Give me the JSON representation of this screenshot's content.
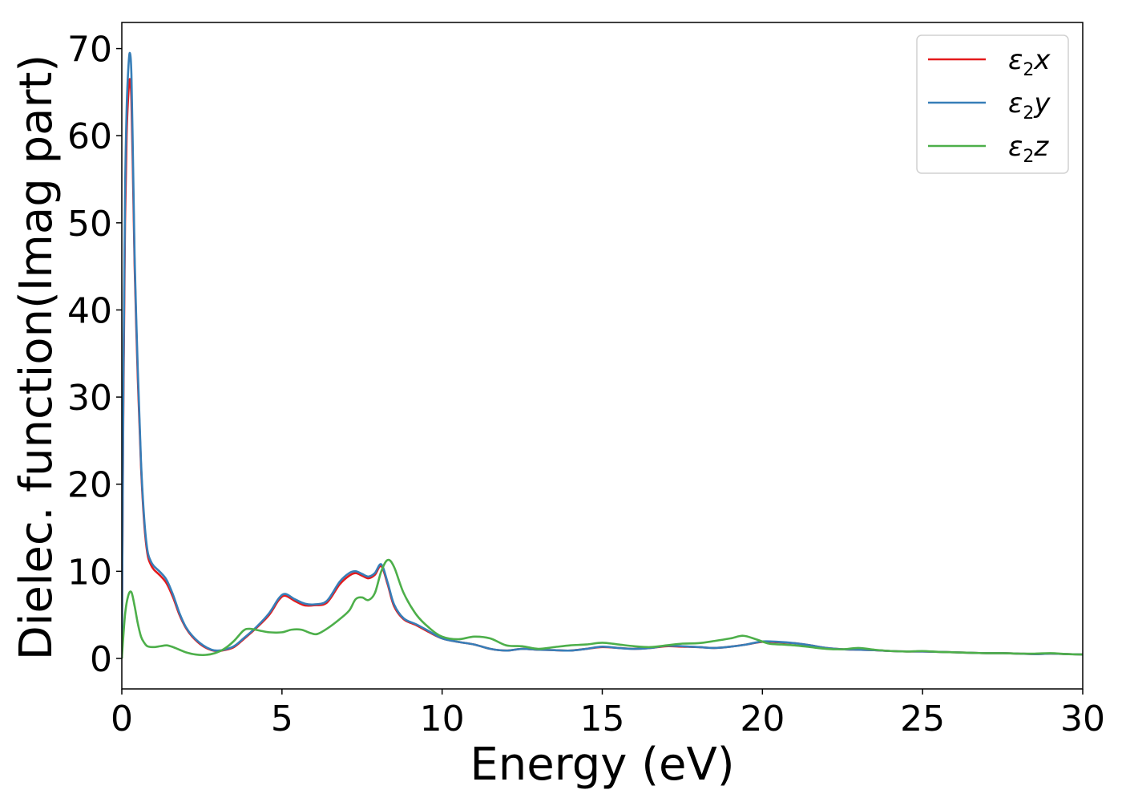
{
  "chart_data": {
    "type": "line",
    "xlabel": "Energy (eV)",
    "ylabel": "Dielec. function(Imag part)",
    "xlim": [
      0,
      30
    ],
    "ylim": [
      -3.5,
      73
    ],
    "xticks": [
      0,
      5,
      10,
      15,
      20,
      25,
      30
    ],
    "yticks": [
      0,
      10,
      20,
      30,
      40,
      50,
      60,
      70
    ],
    "grid": false,
    "legend": "top-right",
    "series": [
      {
        "legend_sym": "ε",
        "legend_sub": "2",
        "legend_var": "x",
        "color": "#e41a1c",
        "x": [
          0,
          0.05,
          0.1,
          0.15,
          0.2,
          0.25,
          0.3,
          0.35,
          0.4,
          0.5,
          0.6,
          0.7,
          0.8,
          0.9,
          1.0,
          1.2,
          1.4,
          1.6,
          1.8,
          2.0,
          2.2,
          2.5,
          2.8,
          3.0,
          3.2,
          3.5,
          3.8,
          4.2,
          4.6,
          4.9,
          5.1,
          5.4,
          5.7,
          6.0,
          6.4,
          6.8,
          7.1,
          7.3,
          7.5,
          7.7,
          7.9,
          8.1,
          8.3,
          8.5,
          8.8,
          9.2,
          9.6,
          10.0,
          10.5,
          11.0,
          11.5,
          12.0,
          12.5,
          13.0,
          13.5,
          14.0,
          14.5,
          15.0,
          15.5,
          16.0,
          16.5,
          17.0,
          17.5,
          18.0,
          18.5,
          19.0,
          19.5,
          20.0,
          20.5,
          21.0,
          21.5,
          22.0,
          22.5,
          23.0,
          23.5,
          24.0,
          24.5,
          25.0,
          25.5,
          26.0,
          26.5,
          27.0,
          27.5,
          28.0,
          28.5,
          29.0,
          29.5,
          30.0
        ],
        "y": [
          0,
          30,
          50,
          60,
          64.5,
          66.5,
          64,
          55,
          45,
          32,
          22,
          15.5,
          12,
          10.8,
          10.2,
          9.5,
          8.6,
          7.0,
          5.0,
          3.5,
          2.5,
          1.5,
          0.95,
          0.85,
          0.95,
          1.3,
          2.2,
          3.5,
          5.0,
          6.7,
          7.2,
          6.6,
          6.1,
          6.1,
          6.4,
          8.5,
          9.5,
          9.8,
          9.5,
          9.2,
          9.6,
          10.6,
          8.5,
          6.0,
          4.5,
          3.8,
          3.0,
          2.3,
          1.9,
          1.6,
          1.1,
          0.9,
          1.1,
          1.0,
          0.95,
          0.9,
          1.1,
          1.3,
          1.2,
          1.1,
          1.2,
          1.4,
          1.35,
          1.3,
          1.2,
          1.35,
          1.6,
          1.9,
          1.85,
          1.75,
          1.5,
          1.2,
          1.05,
          1.0,
          0.95,
          0.85,
          0.8,
          0.8,
          0.75,
          0.7,
          0.65,
          0.6,
          0.6,
          0.55,
          0.5,
          0.55,
          0.5,
          0.45
        ]
      },
      {
        "legend_sym": "ε",
        "legend_sub": "2",
        "legend_var": "y",
        "color": "#377eb8",
        "x": [
          0,
          0.05,
          0.1,
          0.15,
          0.2,
          0.25,
          0.3,
          0.35,
          0.4,
          0.5,
          0.6,
          0.7,
          0.8,
          0.9,
          1.0,
          1.2,
          1.4,
          1.6,
          1.8,
          2.0,
          2.2,
          2.5,
          2.8,
          3.0,
          3.2,
          3.5,
          3.8,
          4.2,
          4.6,
          4.9,
          5.1,
          5.4,
          5.7,
          6.0,
          6.4,
          6.8,
          7.1,
          7.3,
          7.5,
          7.7,
          7.9,
          8.1,
          8.3,
          8.5,
          8.8,
          9.2,
          9.6,
          10.0,
          10.5,
          11.0,
          11.5,
          12.0,
          12.5,
          13.0,
          13.5,
          14.0,
          14.5,
          15.0,
          15.5,
          16.0,
          16.5,
          17.0,
          17.5,
          18.0,
          18.5,
          19.0,
          19.5,
          20.0,
          20.5,
          21.0,
          21.5,
          22.0,
          22.5,
          23.0,
          23.5,
          24.0,
          24.5,
          25.0,
          25.5,
          26.0,
          26.5,
          27.0,
          27.5,
          28.0,
          28.5,
          29.0,
          29.5,
          30.0
        ],
        "y": [
          0,
          32,
          53,
          63,
          67.5,
          69.5,
          67,
          57,
          46,
          33,
          22.5,
          16,
          12.4,
          11.2,
          10.6,
          9.9,
          9.0,
          7.3,
          5.2,
          3.6,
          2.6,
          1.6,
          1.0,
          0.9,
          1.0,
          1.4,
          2.3,
          3.6,
          5.2,
          6.9,
          7.4,
          6.8,
          6.3,
          6.2,
          6.6,
          8.8,
          9.8,
          10.0,
          9.7,
          9.4,
          9.8,
          10.8,
          8.7,
          6.2,
          4.6,
          3.9,
          3.1,
          2.3,
          1.9,
          1.6,
          1.1,
          0.9,
          1.1,
          1.0,
          0.95,
          0.9,
          1.1,
          1.35,
          1.2,
          1.1,
          1.2,
          1.45,
          1.4,
          1.3,
          1.2,
          1.35,
          1.6,
          1.95,
          1.9,
          1.75,
          1.5,
          1.2,
          1.05,
          1.0,
          0.95,
          0.85,
          0.8,
          0.8,
          0.75,
          0.7,
          0.65,
          0.6,
          0.6,
          0.55,
          0.5,
          0.55,
          0.5,
          0.45
        ]
      },
      {
        "legend_sym": "ε",
        "legend_sub": "2",
        "legend_var": "z",
        "color": "#4daf4a",
        "x": [
          0,
          0.1,
          0.2,
          0.3,
          0.4,
          0.5,
          0.6,
          0.7,
          0.8,
          1.0,
          1.2,
          1.4,
          1.6,
          1.8,
          2.0,
          2.3,
          2.6,
          2.9,
          3.2,
          3.5,
          3.8,
          4.0,
          4.3,
          4.6,
          5.0,
          5.3,
          5.6,
          5.9,
          6.1,
          6.4,
          6.8,
          7.1,
          7.3,
          7.5,
          7.7,
          7.9,
          8.1,
          8.3,
          8.5,
          8.8,
          9.2,
          9.6,
          10.0,
          10.5,
          11.0,
          11.5,
          12.0,
          12.5,
          13.0,
          13.5,
          14.0,
          14.5,
          15.0,
          15.5,
          16.0,
          16.5,
          17.0,
          17.5,
          18.0,
          18.5,
          19.0,
          19.4,
          19.8,
          20.2,
          20.6,
          21.0,
          21.5,
          22.0,
          22.5,
          23.0,
          23.5,
          24.0,
          24.5,
          25.0,
          25.5,
          26.0,
          26.5,
          27.0,
          27.5,
          28.0,
          28.5,
          29.0,
          29.5,
          30.0
        ],
        "y": [
          0,
          5.0,
          7.2,
          7.6,
          6.0,
          4.0,
          2.5,
          1.8,
          1.4,
          1.3,
          1.4,
          1.5,
          1.3,
          1.0,
          0.7,
          0.45,
          0.4,
          0.6,
          1.1,
          2.0,
          3.2,
          3.4,
          3.2,
          3.0,
          3.0,
          3.3,
          3.3,
          2.9,
          2.8,
          3.4,
          4.5,
          5.5,
          6.8,
          7.0,
          6.7,
          7.5,
          10.0,
          11.3,
          10.5,
          7.5,
          5.0,
          3.5,
          2.5,
          2.2,
          2.5,
          2.3,
          1.5,
          1.4,
          1.1,
          1.3,
          1.5,
          1.6,
          1.8,
          1.6,
          1.4,
          1.3,
          1.5,
          1.7,
          1.75,
          2.0,
          2.3,
          2.6,
          2.2,
          1.7,
          1.6,
          1.5,
          1.3,
          1.1,
          1.05,
          1.2,
          1.0,
          0.85,
          0.8,
          0.85,
          0.75,
          0.7,
          0.65,
          0.6,
          0.6,
          0.55,
          0.55,
          0.6,
          0.5,
          0.45
        ]
      }
    ]
  }
}
